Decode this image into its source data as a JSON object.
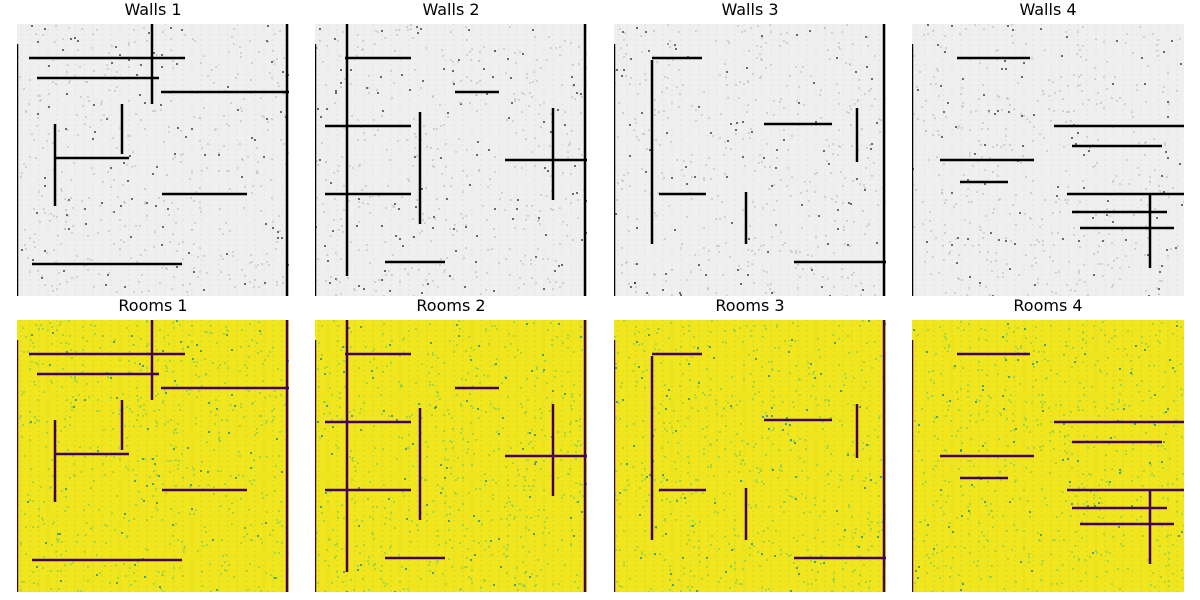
{
  "figure": {
    "colors": {
      "walls_background": "#efefef",
      "walls_line": "#000000",
      "rooms_background": "#f1e51d",
      "rooms_speckle": "#6ccd5a",
      "rooms_line": "#440154",
      "rooms_mid": "#21918c"
    },
    "panels": [
      {
        "title": "Walls 1",
        "kind": "walls",
        "variant": 1
      },
      {
        "title": "Walls 2",
        "kind": "walls",
        "variant": 2
      },
      {
        "title": "Walls 3",
        "kind": "walls",
        "variant": 3
      },
      {
        "title": "Walls 4",
        "kind": "walls",
        "variant": 4
      },
      {
        "title": "Rooms 1",
        "kind": "rooms",
        "variant": 1
      },
      {
        "title": "Rooms 2",
        "kind": "rooms",
        "variant": 2
      },
      {
        "title": "Rooms 3",
        "kind": "rooms",
        "variant": 3
      },
      {
        "title": "Rooms 4",
        "kind": "rooms",
        "variant": 4
      }
    ]
  }
}
